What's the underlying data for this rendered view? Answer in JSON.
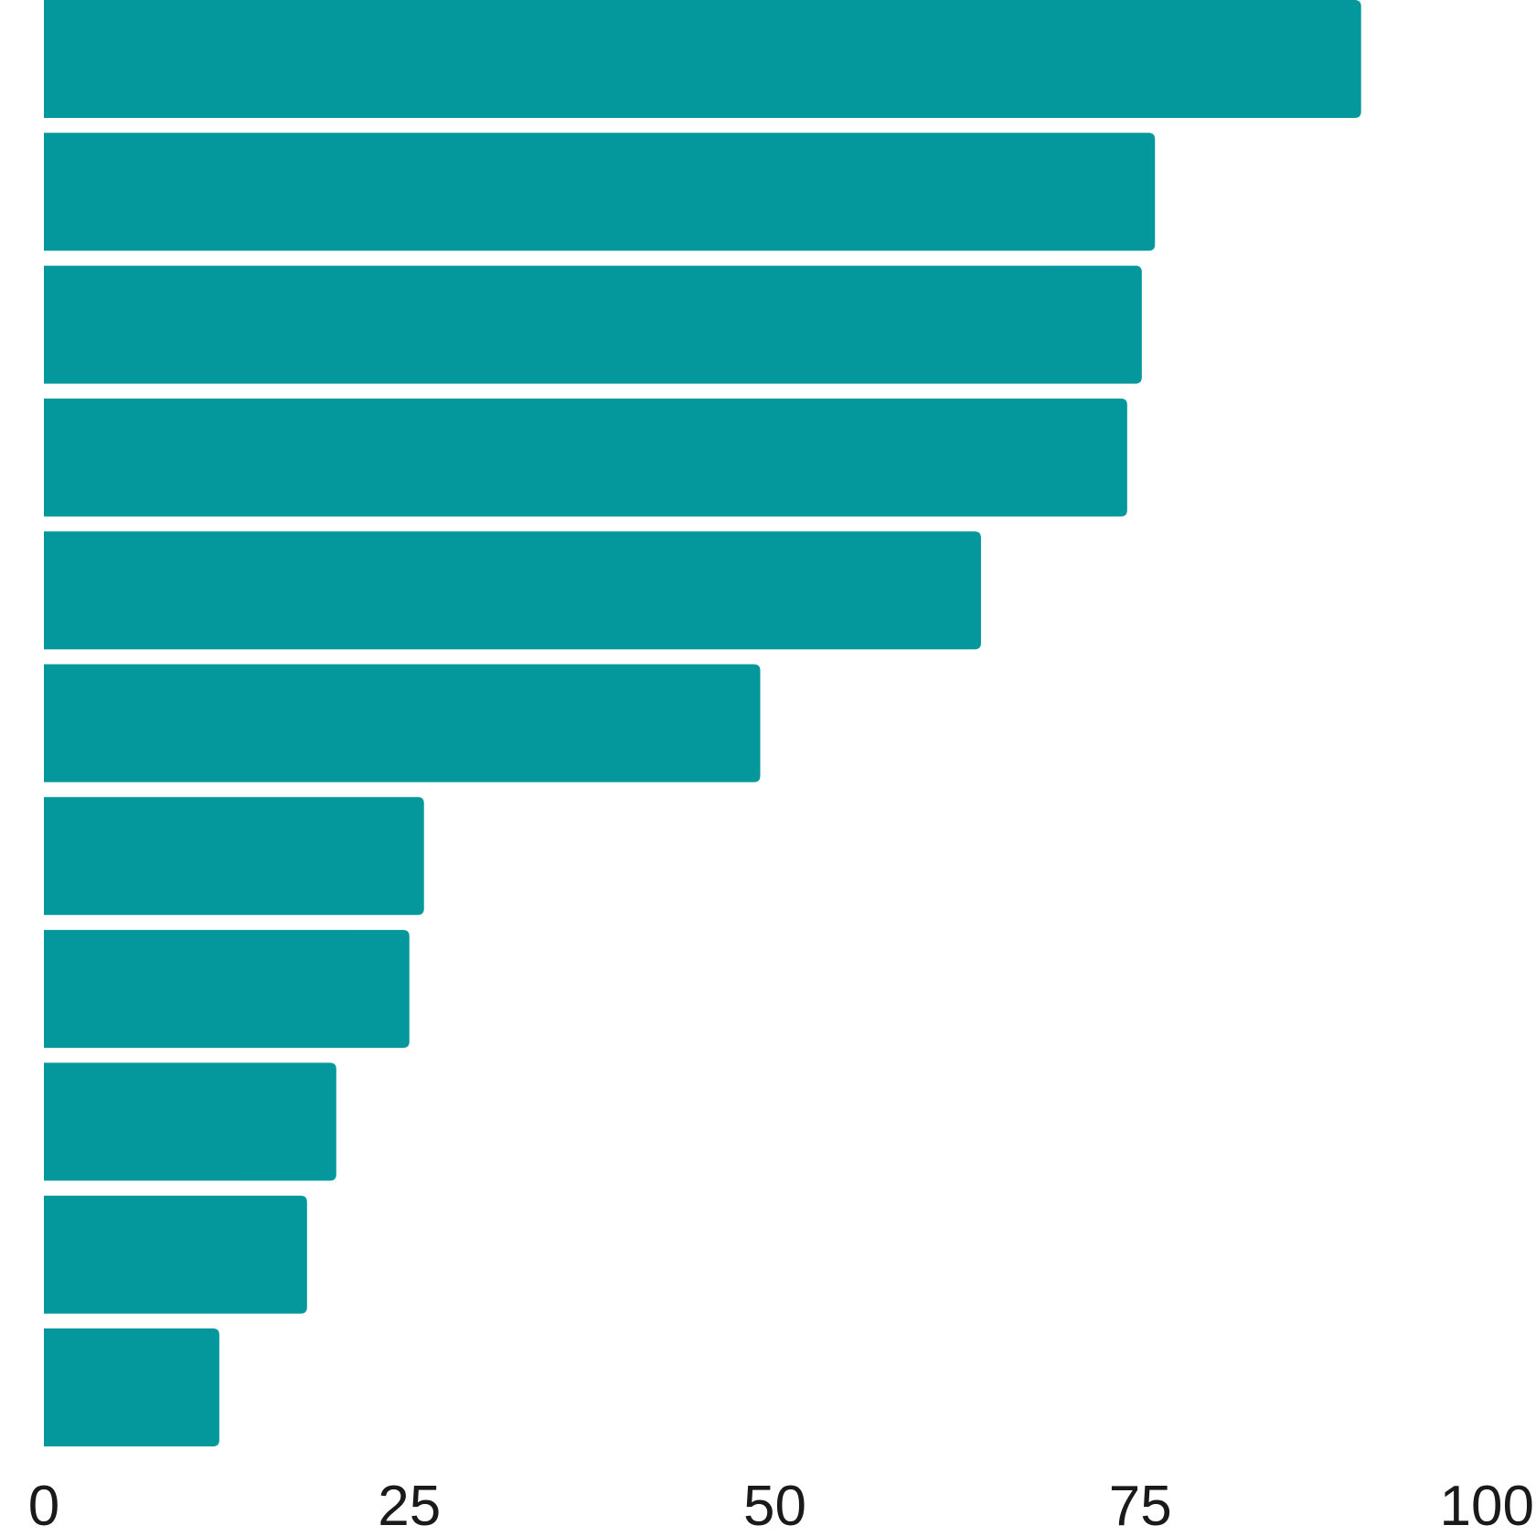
{
  "chart_data": {
    "type": "bar",
    "orientation": "horizontal",
    "title": "",
    "xlabel": "",
    "ylabel": "",
    "xlim": [
      0,
      100
    ],
    "x_ticks": [
      "0",
      "25",
      "50",
      "75",
      "100"
    ],
    "grid": false,
    "legend": "none",
    "bar_color": "#04979C",
    "values": [
      90.1,
      76.0,
      75.1,
      74.1,
      64.1,
      49.0,
      26.0,
      25.0,
      20.0,
      18.0,
      12.0
    ]
  }
}
